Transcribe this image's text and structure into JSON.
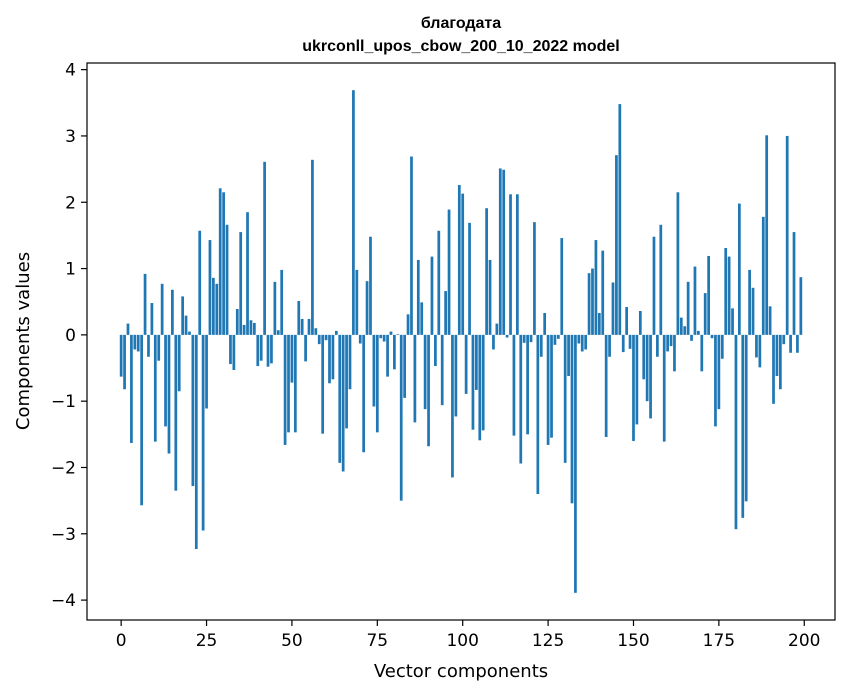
{
  "chart_data": {
    "type": "bar",
    "title": "благодата",
    "subtitle": "ukrconll_upos_cbow_200_10_2022 model",
    "xlabel": "Vector components",
    "ylabel": "Components values",
    "xlim": [
      -10,
      209
    ],
    "ylim": [
      -4.3,
      4.1
    ],
    "xticks": [
      0,
      25,
      50,
      75,
      100,
      125,
      150,
      175,
      200
    ],
    "xtick_labels": [
      "0",
      "25",
      "50",
      "75",
      "100",
      "125",
      "150",
      "175",
      "200"
    ],
    "yticks": [
      -4,
      -3,
      -2,
      -1,
      0,
      1,
      2,
      3,
      4
    ],
    "ytick_labels": [
      "−4",
      "−3",
      "−2",
      "−1",
      "0",
      "1",
      "2",
      "3",
      "4"
    ],
    "grid": false,
    "bar_color": "#1f77b4",
    "x": [
      0,
      1,
      2,
      3,
      4,
      5,
      6,
      7,
      8,
      9,
      10,
      11,
      12,
      13,
      14,
      15,
      16,
      17,
      18,
      19,
      20,
      21,
      22,
      23,
      24,
      25,
      26,
      27,
      28,
      29,
      30,
      31,
      32,
      33,
      34,
      35,
      36,
      37,
      38,
      39,
      40,
      41,
      42,
      43,
      44,
      45,
      46,
      47,
      48,
      49,
      50,
      51,
      52,
      53,
      54,
      55,
      56,
      57,
      58,
      59,
      60,
      61,
      62,
      63,
      64,
      65,
      66,
      67,
      68,
      69,
      70,
      71,
      72,
      73,
      74,
      75,
      76,
      77,
      78,
      79,
      80,
      81,
      82,
      83,
      84,
      85,
      86,
      87,
      88,
      89,
      90,
      91,
      92,
      93,
      94,
      95,
      96,
      97,
      98,
      99,
      100,
      101,
      102,
      103,
      104,
      105,
      106,
      107,
      108,
      109,
      110,
      111,
      112,
      113,
      114,
      115,
      116,
      117,
      118,
      119,
      120,
      121,
      122,
      123,
      124,
      125,
      126,
      127,
      128,
      129,
      130,
      131,
      132,
      133,
      134,
      135,
      136,
      137,
      138,
      139,
      140,
      141,
      142,
      143,
      144,
      145,
      146,
      147,
      148,
      149,
      150,
      151,
      152,
      153,
      154,
      155,
      156,
      157,
      158,
      159,
      160,
      161,
      162,
      163,
      164,
      165,
      166,
      167,
      168,
      169,
      170,
      171,
      172,
      173,
      174,
      175,
      176,
      177,
      178,
      179,
      180,
      181,
      182,
      183,
      184,
      185,
      186,
      187,
      188,
      189,
      190,
      191,
      192,
      193,
      194,
      195,
      196,
      197,
      198,
      199
    ],
    "values": [
      -0.63,
      -0.82,
      0.17,
      -1.63,
      -0.22,
      -0.25,
      -2.57,
      0.92,
      -0.33,
      0.48,
      -1.61,
      -0.39,
      0.77,
      -1.38,
      -1.79,
      0.68,
      -2.35,
      -0.85,
      0.58,
      0.29,
      0.05,
      -2.28,
      -3.23,
      1.57,
      -2.95,
      -1.11,
      1.43,
      0.86,
      0.77,
      2.21,
      2.15,
      1.66,
      -0.44,
      -0.53,
      0.39,
      1.55,
      0.15,
      1.85,
      0.22,
      0.18,
      -0.47,
      -0.39,
      2.61,
      -0.48,
      -0.43,
      0.8,
      0.07,
      0.98,
      -1.66,
      -1.47,
      -0.72,
      -1.47,
      0.51,
      0.24,
      -0.4,
      0.24,
      2.64,
      0.1,
      -0.14,
      -1.49,
      -0.08,
      -0.73,
      -0.67,
      0.06,
      -1.93,
      -2.06,
      -1.41,
      -0.82,
      3.69,
      0.98,
      -0.13,
      -1.77,
      0.81,
      1.48,
      -1.08,
      -1.47,
      -0.05,
      -0.1,
      -0.63,
      0.05,
      -0.52,
      0.01,
      -2.5,
      -0.95,
      0.31,
      2.69,
      -1.32,
      1.13,
      0.49,
      -1.12,
      -1.68,
      1.18,
      -0.47,
      1.57,
      -1.06,
      0.66,
      1.89,
      -2.15,
      -1.23,
      2.26,
      2.13,
      -0.89,
      1.69,
      -1.43,
      -0.83,
      -1.59,
      -1.44,
      1.91,
      1.13,
      -0.22,
      0.17,
      2.51,
      2.49,
      -0.04,
      2.12,
      -1.52,
      2.12,
      -1.94,
      -0.12,
      -1.5,
      -0.11,
      1.7,
      -2.4,
      -0.33,
      0.33,
      -1.66,
      -1.55,
      -0.15,
      -0.06,
      1.46,
      -1.93,
      -0.62,
      -2.54,
      -3.89,
      -0.13,
      -0.25,
      -0.22,
      0.93,
      1.0,
      1.43,
      0.33,
      1.27,
      -1.54,
      -0.33,
      0.79,
      2.71,
      3.48,
      -0.26,
      0.42,
      -0.21,
      -1.6,
      -1.35,
      0.36,
      -0.67,
      -1.0,
      -1.26,
      1.48,
      -0.33,
      1.66,
      -1.61,
      -0.25,
      -0.17,
      -0.55,
      2.15,
      0.26,
      0.13,
      0.8,
      -0.09,
      1.03,
      0.06,
      -0.55,
      0.63,
      1.19,
      -0.05,
      -1.38,
      -1.12,
      -0.36,
      1.31,
      1.18,
      0.4,
      -2.93,
      1.98,
      -2.76,
      -2.51,
      0.98,
      0.71,
      -0.34,
      -0.49,
      1.78,
      3.01,
      0.43,
      -1.04,
      -0.62,
      -0.82,
      -0.14,
      3.0,
      -0.27,
      1.55,
      -0.27,
      0.87
    ]
  }
}
